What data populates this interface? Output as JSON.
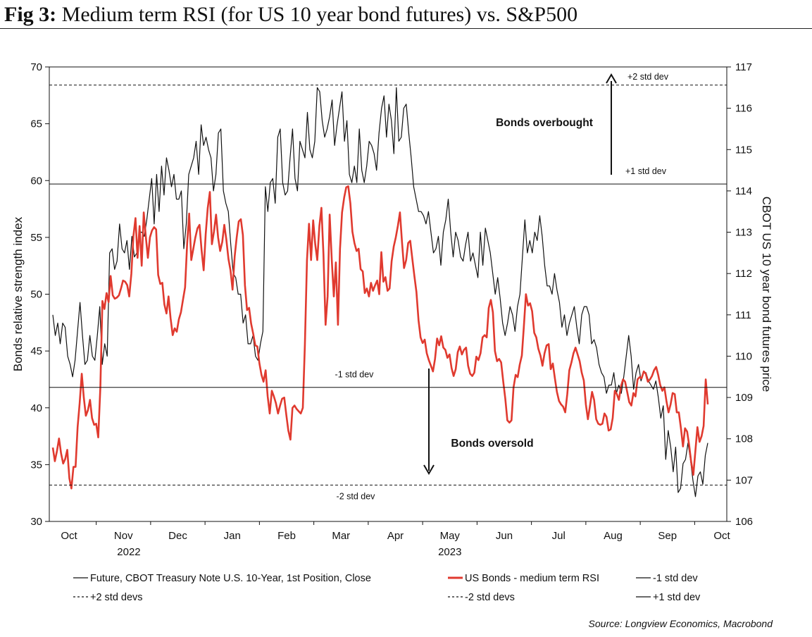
{
  "figure": {
    "label": "Fig 3:",
    "title": "Medium term RSI (for US 10 year bond futures) vs. S&P500",
    "source": "Source: Longview Economics, Macrobond"
  },
  "chart_data": {
    "type": "line",
    "x_axis": {
      "months": [
        "Oct",
        "Nov",
        "Dec",
        "Jan",
        "Feb",
        "Mar",
        "Apr",
        "May",
        "Jun",
        "Jul",
        "Aug",
        "Sep",
        "Oct"
      ],
      "years": [
        "2022",
        "2023"
      ]
    },
    "y_left": {
      "label": "Bonds relative strength index",
      "range": [
        30,
        70
      ],
      "ticks": [
        30,
        35,
        40,
        45,
        50,
        55,
        60,
        65,
        70
      ]
    },
    "y_right": {
      "label": "CBOT US 10 year bond futures price",
      "range": [
        106,
        117
      ],
      "ticks": [
        106,
        107,
        108,
        109,
        110,
        111,
        112,
        113,
        114,
        115,
        116,
        117
      ]
    },
    "colors": {
      "futures": "#111111",
      "rsi": "#e03a2f"
    },
    "series": [
      {
        "name": "Future, CBOT Treasury Note U.S. 10-Year, 1st Position, Close",
        "axis": "right",
        "values": [
          111,
          110.5,
          110.8,
          110.3,
          110.8,
          110.7,
          110.0,
          109.8,
          109.5,
          109.9,
          110.6,
          111.3,
          110.5,
          109.8,
          109.9,
          110.5,
          110.0,
          109.9,
          110.5,
          111.2,
          109.8,
          110.3,
          110.0,
          112.5,
          112.6,
          112.1,
          112.3,
          113.2,
          112.6,
          112.5,
          112.8,
          112.1,
          112.9,
          112.4,
          112.5,
          113.0,
          113.0,
          112.9,
          113.3,
          113.8,
          114.3,
          113.2,
          114.4,
          113.5,
          114.6,
          113.9,
          114.8,
          114.5,
          114.1,
          114.4,
          113.8,
          113.8,
          114.0,
          112.6,
          113.2,
          114.4,
          114.6,
          114.8,
          115.2,
          114.4,
          115.6,
          115.1,
          115.3,
          115.0,
          114.8,
          114.0,
          114.4,
          115.4,
          115.5,
          114.0,
          113.7,
          113.5,
          112.7,
          112.0,
          111.9,
          111.5,
          111.5,
          110.8,
          111.0,
          110.3,
          110.3,
          110.5,
          110.0,
          109.9,
          110.3,
          110.6,
          114.1,
          113.5,
          114.2,
          114.3,
          113.7,
          115.3,
          115.5,
          114.2,
          113.9,
          114.0,
          114.8,
          115.5,
          114.3,
          114.0,
          115.2,
          115.0,
          114.8,
          115.9,
          115.0,
          114.8,
          115.2,
          116.5,
          116.4,
          115.7,
          115.3,
          115.5,
          115.8,
          116.2,
          115.1,
          115.6,
          116.0,
          116.4,
          115.2,
          115.7,
          114.4,
          114.2,
          114.6,
          114.2,
          115.5,
          114.5,
          114.2,
          114.6,
          115.2,
          115.1,
          114.9,
          114.5,
          115.4,
          116.0,
          116.3,
          115.3,
          116.1,
          115.7,
          114.9,
          116.5,
          115.2,
          115.3,
          116.0,
          116.1,
          115.4,
          114.8,
          114.1,
          113.8,
          113.5,
          113.5,
          113.4,
          113.2,
          113.5,
          113.0,
          112.5,
          112.6,
          112.9,
          112.2,
          113.0,
          113.3,
          113.8,
          113.0,
          112.4,
          113.0,
          112.8,
          112.4,
          112.3,
          112.7,
          113.0,
          112.3,
          112.5,
          112.2,
          111.9,
          113.0,
          112.2,
          113.1,
          112.8,
          112.5,
          112.0,
          111.5,
          111.9,
          111.4,
          110.8,
          110.5,
          110.8,
          111.2,
          111.0,
          110.6,
          111.2,
          111.5,
          112.4,
          113.3,
          112.5,
          112.8,
          112.5,
          113.0,
          112.8,
          113.4,
          112.9,
          112.2,
          111.7,
          111.7,
          111.5,
          112.0,
          111.6,
          111.3,
          110.7,
          111.0,
          110.5,
          110.8,
          111.0,
          111.2,
          110.7,
          110.3,
          111.0,
          111.2,
          111.2,
          111.0,
          110.3,
          110.4,
          110.2,
          109.8,
          109.6,
          109.5,
          109.1,
          109.3,
          109.3,
          109.6,
          109.1,
          109.3,
          109.1,
          109.5,
          110.0,
          110.5,
          110.0,
          109.2,
          109.6,
          109.8,
          109.4,
          109.6,
          109.6,
          109.4,
          109.3,
          109.2,
          109.4,
          109.0,
          108.5,
          108.8,
          107.5,
          108.2,
          107.8,
          107.2,
          107.8,
          106.7,
          106.8,
          107.4,
          107.5,
          107.9,
          107.5,
          107.0,
          106.6,
          107.1,
          107.2,
          106.9,
          107.6,
          107.9
        ]
      },
      {
        "name": "US Bonds - medium term RSI",
        "axis": "left",
        "values": [
          36.5,
          35.3,
          36.2,
          37.3,
          36.0,
          35.1,
          35.5,
          36.3,
          33.8,
          32.9,
          34.8,
          34.8,
          38.3,
          40.4,
          43.0,
          40.9,
          39.3,
          39.8,
          40.7,
          39.1,
          38.5,
          38.6,
          37.4,
          41.8,
          49.4,
          48.7,
          50.1,
          49.3,
          51.6,
          49.9,
          49.6,
          49.7,
          49.9,
          50.5,
          51.2,
          51.1,
          50.8,
          49.8,
          51.8,
          55.1,
          56.7,
          53.2,
          56.0,
          52.5,
          57.2,
          55.1,
          53.2,
          55.0,
          55.6,
          55.9,
          55.7,
          51.7,
          50.9,
          51.0,
          49.1,
          48.3,
          49.8,
          47.9,
          46.4,
          47.0,
          46.7,
          47.8,
          48.4,
          49.5,
          50.6,
          54.4,
          57.1,
          53.0,
          54.0,
          55.0,
          55.8,
          56.1,
          53.9,
          52.1,
          55.3,
          57.6,
          59.0,
          54.4,
          55.5,
          57.0,
          55.0,
          53.8,
          54.6,
          56.1,
          54.8,
          53.1,
          52.1,
          50.4,
          53.3,
          55.0,
          56.4,
          56.6,
          55.2,
          50.8,
          48.6,
          48.8,
          47.4,
          46.5,
          45.5,
          45.4,
          43.9,
          42.9,
          42.3,
          43.3,
          41.0,
          39.5,
          41.5,
          41.0,
          40.4,
          39.5,
          40.2,
          40.8,
          40.9,
          39.4,
          38.0,
          37.2,
          40.0,
          40.2,
          39.9,
          39.7,
          39.5,
          40.0,
          45.5,
          53.0,
          56.2,
          53.0,
          56.5,
          54.4,
          53.0,
          56.0,
          57.6,
          53.5,
          47.3,
          49.8,
          57.0,
          53.0,
          49.8,
          52.8,
          47.3,
          54.0,
          57.2,
          58.5,
          59.4,
          59.5,
          58.0,
          55.5,
          54.5,
          53.8,
          54.0,
          52.2,
          52.0,
          50.1,
          50.5,
          49.8,
          51.0,
          50.3,
          50.8,
          51.2,
          50.0,
          53.7,
          51.1,
          51.5,
          50.3,
          50.5,
          52.9,
          54.2,
          55.0,
          56.0,
          57.2,
          54.6,
          52.3,
          53.0,
          54.5,
          54.7,
          53.1,
          51.6,
          50.2,
          47.7,
          46.2,
          45.7,
          46.0,
          44.8,
          44.2,
          43.7,
          43.2,
          44.3,
          46.1,
          45.5,
          46.3,
          45.3,
          45.1,
          44.4,
          44.7,
          43.5,
          42.8,
          43.4,
          44.9,
          45.4,
          44.7,
          45.1,
          45.3,
          43.7,
          43.0,
          42.8,
          43.1,
          44.5,
          44.2,
          44.8,
          46.2,
          46.4,
          46.2,
          48.8,
          49.5,
          48.4,
          45.0,
          44.1,
          44.3,
          44.0,
          42.3,
          40.8,
          38.9,
          38.7,
          38.9,
          41.8,
          42.9,
          42.7,
          43.8,
          44.6,
          47.2,
          50.0,
          49.0,
          49.2,
          48.5,
          46.6,
          46.2,
          45.2,
          44.6,
          43.7,
          44.8,
          45.5,
          45.6,
          43.4,
          43.9,
          42.6,
          41.4,
          40.6,
          40.3,
          40.1,
          39.6,
          41.2,
          43.3,
          44.0,
          44.8,
          45.3,
          44.7,
          44.1,
          43.1,
          42.4,
          40.3,
          39.0,
          40.2,
          41.4,
          40.7,
          39.0,
          38.6,
          38.5,
          38.6,
          39.5,
          39.2,
          38.0,
          38.1,
          39.1,
          41.5,
          41.2,
          40.7,
          41.9,
          42.5,
          42.3,
          41.4,
          40.5,
          40.2,
          41.3,
          41.0,
          42.5,
          42.7,
          42.6,
          43.2,
          43.0,
          42.3,
          42.5,
          42.8,
          43.3,
          43.6,
          42.9,
          42.0,
          41.5,
          41.8,
          40.6,
          39.6,
          40.3,
          41.3,
          41.2,
          39.6,
          39.6,
          38.2,
          36.6,
          38.2,
          37.9,
          36.7,
          35.2,
          34.1,
          36.2,
          38.3,
          37.0,
          37.5,
          38.4,
          42.5,
          40.3
        ]
      }
    ],
    "reference_lines": [
      {
        "name": "+2 std devs",
        "value": 68.4,
        "style": "dashed",
        "text": "+2 std dev"
      },
      {
        "name": "+1 std dev",
        "value": 59.7,
        "style": "solid",
        "text": "+1 std dev"
      },
      {
        "name": "-1 std dev",
        "value": 41.8,
        "style": "solid",
        "text": "-1 std dev"
      },
      {
        "name": "-2 std devs",
        "value": 33.2,
        "style": "dashed",
        "text": "-2 std dev"
      }
    ],
    "annotations": [
      {
        "text": "Bonds overbought",
        "arrow": "up"
      },
      {
        "text": "Bonds oversold",
        "arrow": "down"
      }
    ],
    "legend": {
      "placement": "bottom",
      "rows": [
        [
          {
            "label": "Future, CBOT Treasury Note U.S. 10-Year, 1st Position, Close",
            "style": "solid-thin"
          },
          {
            "label": "US Bonds - medium term RSI",
            "style": "solid-red"
          },
          {
            "label": "-1 std dev",
            "style": "solid-thin"
          }
        ],
        [
          {
            "label": "+2 std devs",
            "style": "dashed"
          },
          {
            "label": "-2 std devs",
            "style": "dashed"
          },
          {
            "label": "+1 std dev",
            "style": "solid-thin"
          }
        ]
      ]
    }
  }
}
